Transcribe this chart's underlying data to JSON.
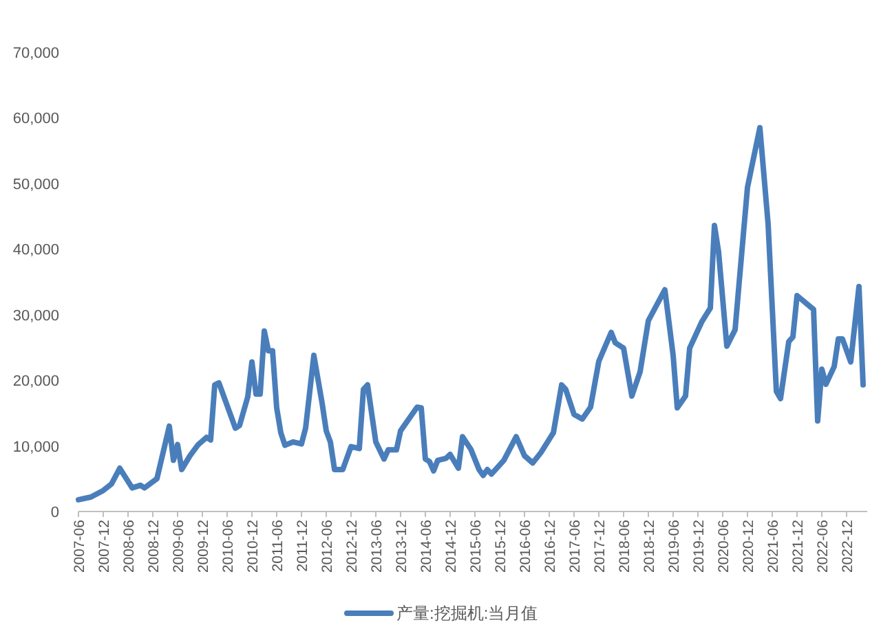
{
  "chart_data": {
    "type": "line",
    "x": [
      "2007-06",
      "2007-09",
      "2007-12",
      "2008-02",
      "2008-04",
      "2008-07",
      "2008-09",
      "2008-10",
      "2009-01",
      "2009-04",
      "2009-05",
      "2009-06",
      "2009-07",
      "2009-09",
      "2009-11",
      "2010-01",
      "2010-02",
      "2010-03",
      "2010-04",
      "2010-08",
      "2010-09",
      "2010-11",
      "2010-12",
      "2011-01",
      "2011-02",
      "2011-03",
      "2011-04",
      "2011-05",
      "2011-06",
      "2011-07",
      "2011-08",
      "2011-10",
      "2011-12",
      "2012-01",
      "2012-03",
      "2012-05",
      "2012-06",
      "2012-07",
      "2012-08",
      "2012-10",
      "2012-12",
      "2013-02",
      "2013-03",
      "2013-04",
      "2013-06",
      "2013-08",
      "2013-09",
      "2013-11",
      "2013-12",
      "2014-04",
      "2014-05",
      "2014-06",
      "2014-07",
      "2014-08",
      "2014-09",
      "2014-11",
      "2014-12",
      "2015-02",
      "2015-03",
      "2015-05",
      "2015-07",
      "2015-08",
      "2015-09",
      "2015-10",
      "2016-01",
      "2016-04",
      "2016-06",
      "2016-08",
      "2016-10",
      "2017-01",
      "2017-03",
      "2017-04",
      "2017-06",
      "2017-08",
      "2017-10",
      "2017-12",
      "2018-03",
      "2018-04",
      "2018-06",
      "2018-08",
      "2018-10",
      "2018-12",
      "2019-04",
      "2019-06",
      "2019-07",
      "2019-09",
      "2019-10",
      "2020-01",
      "2020-03",
      "2020-04",
      "2020-05",
      "2020-07",
      "2020-09",
      "2020-10",
      "2020-12",
      "2021-03",
      "2021-05",
      "2021-07",
      "2021-08",
      "2021-10",
      "2021-11",
      "2021-12",
      "2022-04",
      "2022-05",
      "2022-06",
      "2022-07",
      "2022-09",
      "2022-10",
      "2022-11",
      "2023-01",
      "2023-03",
      "2023-04"
    ],
    "series": [
      {
        "name": "产量:挖掘机:当月值",
        "color": "#4a7ebb",
        "values": [
          1800,
          2200,
          3200,
          4200,
          6600,
          3600,
          4000,
          3600,
          5000,
          13000,
          7800,
          10200,
          6400,
          8500,
          10200,
          11300,
          10900,
          19300,
          19600,
          12700,
          13100,
          17500,
          22800,
          17900,
          17900,
          27500,
          24500,
          24500,
          15800,
          12000,
          10100,
          10600,
          10300,
          12700,
          23800,
          16500,
          12300,
          10600,
          6400,
          6400,
          9900,
          9600,
          18600,
          19300,
          10600,
          8000,
          9400,
          9400,
          12300,
          15900,
          15800,
          8000,
          7600,
          6200,
          7800,
          8100,
          8700,
          6600,
          11400,
          9500,
          6400,
          5500,
          6400,
          5700,
          7800,
          11400,
          8500,
          7400,
          9000,
          12000,
          19300,
          18600,
          14800,
          14100,
          15900,
          22900,
          27300,
          25700,
          24900,
          17600,
          21300,
          29100,
          33800,
          23800,
          15800,
          17600,
          24900,
          29000,
          31000,
          43600,
          39600,
          25200,
          27700,
          35000,
          49400,
          58500,
          43800,
          18300,
          17200,
          25900,
          26600,
          32900,
          30800,
          13800,
          21700,
          19400,
          22100,
          26300,
          26300,
          22800,
          34300,
          19300
        ]
      }
    ],
    "xlim": [
      "2007-06",
      "2023-05"
    ],
    "xticks": [
      "2007-06",
      "2007-12",
      "2008-06",
      "2008-12",
      "2009-06",
      "2009-12",
      "2010-06",
      "2010-12",
      "2011-06",
      "2011-12",
      "2012-06",
      "2012-12",
      "2013-06",
      "2013-12",
      "2014-06",
      "2014-12",
      "2015-06",
      "2015-12",
      "2016-06",
      "2016-12",
      "2017-06",
      "2017-12",
      "2018-06",
      "2018-12",
      "2019-06",
      "2019-12",
      "2020-06",
      "2020-12",
      "2021-06",
      "2021-12",
      "2022-06",
      "2022-12"
    ],
    "ylim": [
      0,
      70000
    ],
    "yticks": [
      {
        "value": 0,
        "label": "0"
      },
      {
        "value": 10000,
        "label": "10,000"
      },
      {
        "value": 20000,
        "label": "20,000"
      },
      {
        "value": 30000,
        "label": "30,000"
      },
      {
        "value": 40000,
        "label": "40,000"
      },
      {
        "value": 50000,
        "label": "50,000"
      },
      {
        "value": 60000,
        "label": "60,000"
      },
      {
        "value": 70000,
        "label": "70,000"
      }
    ],
    "grid": false,
    "legend": "bottom",
    "marker": "none",
    "line_style": "solid"
  }
}
